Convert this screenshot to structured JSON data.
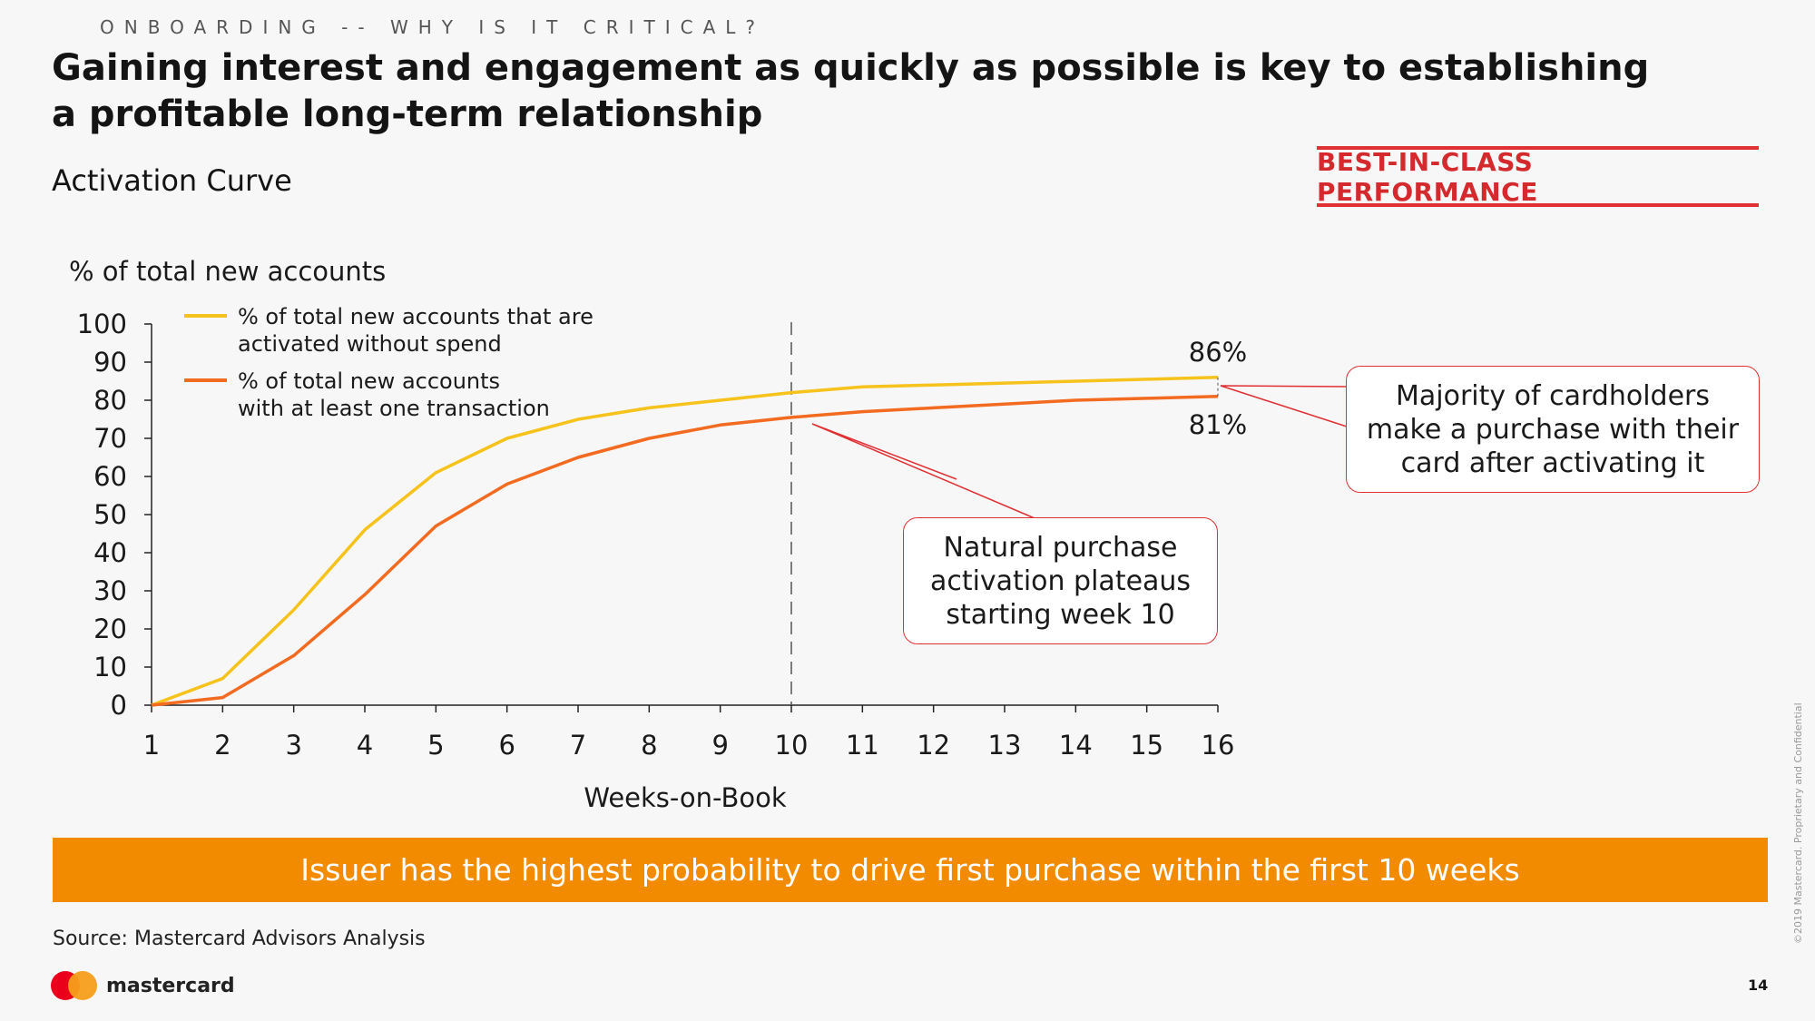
{
  "header": {
    "kicker": "ONBOARDING -- WHY IS IT CRITICAL?",
    "headline": "Gaining interest and engagement as quickly as possible is key to establishing a profitable long-term relationship",
    "subtitle": "Activation Curve",
    "badge": "BEST-IN-CLASS PERFORMANCE"
  },
  "chart_data": {
    "type": "line",
    "ylabel": "% of total new accounts",
    "xlabel": "Weeks-on-Book",
    "ylim": [
      0,
      100
    ],
    "yticks": [
      0,
      10,
      20,
      30,
      40,
      50,
      60,
      70,
      80,
      90,
      100
    ],
    "x": [
      1,
      2,
      3,
      4,
      5,
      6,
      7,
      8,
      9,
      10,
      11,
      12,
      13,
      14,
      15,
      16
    ],
    "series": [
      {
        "name": "% of total new accounts that are activated without spend",
        "legend_lines": [
          "% of total new accounts that are",
          "activated without spend"
        ],
        "color": "#f6c21c",
        "values": [
          0,
          7,
          25,
          46,
          61,
          70,
          75,
          78,
          80,
          82,
          83.5,
          84,
          84.5,
          85,
          85.5,
          86
        ]
      },
      {
        "name": "% of total new accounts with at least one transaction",
        "legend_lines": [
          "% of total new accounts",
          "with at least one transaction"
        ],
        "color": "#f26b21",
        "values": [
          0,
          2,
          13,
          29,
          47,
          58,
          65,
          70,
          73.5,
          75.5,
          77,
          78,
          79,
          80,
          80.5,
          81
        ]
      }
    ],
    "reference_line_x": 10,
    "end_labels": [
      "86%",
      "81%"
    ],
    "legend_position": "top-left",
    "grid": false
  },
  "callouts": {
    "plateau": "Natural purchase activation plateaus starting week 10",
    "majority": "Majority of cardholders make a purchase with their card after activating it"
  },
  "banner": "Issuer has the highest probability to drive first purchase within the first 10 weeks",
  "footer": {
    "source": "Source: Mastercard Advisors Analysis",
    "logo_text": "mastercard",
    "page_number": "14",
    "copyright": "©2019 Mastercard. Proprietary and Confidential"
  },
  "colors": {
    "accent_red": "#e03034",
    "banner_orange": "#f38b00",
    "yellow_series": "#f6c21c",
    "orange_series": "#f26b21"
  }
}
